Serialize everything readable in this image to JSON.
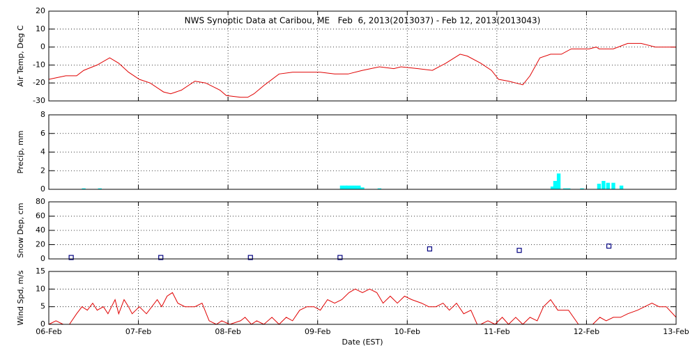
{
  "chart_data": [
    {
      "type": "line",
      "title": "NWS Synoptic Data at Caribou, ME   Feb  6, 2013(2013037) - Feb 12, 2013(2013043)",
      "ylabel": "Air Temp, Deg C",
      "color": "#e00000",
      "ylim": [
        -30,
        20
      ],
      "yticks": [
        -30,
        -20,
        -10,
        0,
        10,
        20
      ],
      "grid": true,
      "x": [
        0,
        0.19,
        0.31,
        0.39,
        0.54,
        0.68,
        0.78,
        0.89,
        1.01,
        1.13,
        1.28,
        1.36,
        1.48,
        1.63,
        1.75,
        1.91,
        1.98,
        2.14,
        2.22,
        2.29,
        2.41,
        2.57,
        2.72,
        3.03,
        3.19,
        3.34,
        3.5,
        3.69,
        3.85,
        3.93,
        4.12,
        4.28,
        4.43,
        4.59,
        4.67,
        4.82,
        4.94,
        5.02,
        5.13,
        5.21,
        5.29,
        5.37,
        5.48,
        5.6,
        5.72,
        5.83,
        6.03,
        6.11,
        6.14,
        6.3,
        6.46,
        6.61,
        6.77,
        6.92,
        7
      ],
      "values": [
        -18,
        -16,
        -16,
        -13,
        -10,
        -6,
        -9,
        -14,
        -18,
        -20,
        -25,
        -26,
        -24,
        -19,
        -20,
        -24,
        -27,
        -28,
        -28,
        -26,
        -21,
        -15,
        -14,
        -14,
        -15,
        -15,
        -13,
        -11,
        -12,
        -11,
        -12,
        -13,
        -9,
        -4,
        -5,
        -9,
        -13,
        -18,
        -19,
        -20,
        -21,
        -16,
        -6,
        -4,
        -4,
        -1,
        -1,
        0,
        -1,
        -1,
        2,
        2,
        0,
        0,
        0
      ]
    },
    {
      "type": "bar",
      "ylabel": "Precip, mm",
      "color": "#00ffff",
      "ylim": [
        0,
        8
      ],
      "yticks": [
        0,
        2,
        4,
        6,
        8
      ],
      "grid": true,
      "x": [
        0.39,
        0.57,
        3.27,
        3.31,
        3.34,
        3.38,
        3.42,
        3.46,
        3.5,
        3.69,
        5.62,
        5.65,
        5.69,
        5.76,
        5.8,
        5.95,
        6.14,
        6.19,
        6.24,
        6.3,
        6.39
      ],
      "values": [
        0.1,
        0.1,
        0.4,
        0.4,
        0.4,
        0.4,
        0.4,
        0.4,
        0.2,
        0.1,
        0.3,
        0.9,
        1.7,
        0.1,
        0.1,
        0.1,
        0.6,
        0.9,
        0.7,
        0.7,
        0.4
      ]
    },
    {
      "type": "scatter",
      "ylabel": "Snow Dep, cm",
      "color": "#000080",
      "ylim": [
        0,
        80
      ],
      "yticks": [
        0,
        20,
        40,
        60,
        80
      ],
      "grid": true,
      "x": [
        0.25,
        1.25,
        2.25,
        3.25,
        4.25,
        5.25,
        6.25
      ],
      "values": [
        2,
        2,
        2,
        2,
        14,
        12,
        18
      ]
    },
    {
      "type": "line",
      "ylabel": "Wind Spd, m/s",
      "xlabel": "Date (EST)",
      "color": "#e00000",
      "ylim": [
        0,
        15
      ],
      "yticks": [
        0,
        5,
        10,
        15
      ],
      "grid": true,
      "xlim": [
        0,
        7
      ],
      "xticks": [
        {
          "value": 0,
          "label": "06-Feb"
        },
        {
          "value": 1,
          "label": "07-Feb"
        },
        {
          "value": 2,
          "label": "08-Feb"
        },
        {
          "value": 3,
          "label": "09-Feb"
        },
        {
          "value": 4,
          "label": "10-Feb"
        },
        {
          "value": 5,
          "label": "11-Feb"
        },
        {
          "value": 6,
          "label": "12-Feb"
        },
        {
          "value": 7,
          "label": "13-Feb"
        }
      ],
      "x": [
        0,
        0.08,
        0.16,
        0.23,
        0.31,
        0.37,
        0.43,
        0.49,
        0.54,
        0.61,
        0.66,
        0.74,
        0.78,
        0.84,
        0.89,
        0.93,
        1.01,
        1.09,
        1.21,
        1.26,
        1.32,
        1.38,
        1.44,
        1.52,
        1.63,
        1.71,
        1.79,
        1.87,
        1.93,
        2.02,
        2.14,
        2.19,
        2.26,
        2.32,
        2.4,
        2.49,
        2.57,
        2.65,
        2.72,
        2.8,
        2.88,
        2.96,
        3.03,
        3.11,
        3.19,
        3.27,
        3.35,
        3.42,
        3.5,
        3.58,
        3.66,
        3.73,
        3.81,
        3.89,
        3.97,
        4.05,
        4.16,
        4.24,
        4.32,
        4.4,
        4.47,
        4.55,
        4.63,
        4.71,
        4.78,
        4.82,
        4.9,
        4.98,
        5.06,
        5.13,
        5.21,
        5.29,
        5.37,
        5.45,
        5.52,
        5.6,
        5.68,
        5.8,
        5.91,
        5.99,
        6.07,
        6.15,
        6.22,
        6.3,
        6.38,
        6.46,
        6.57,
        6.73,
        6.81,
        6.89,
        7
      ],
      "values": [
        0,
        1,
        0,
        0,
        3,
        5,
        4,
        6,
        4,
        5,
        3,
        7,
        3,
        7,
        5,
        3,
        5,
        3,
        7,
        5,
        8,
        9,
        6,
        5,
        5,
        6,
        1,
        0,
        1,
        0,
        1,
        2,
        0,
        1,
        0,
        2,
        0,
        2,
        1,
        4,
        5,
        5,
        4,
        7,
        6,
        7,
        9,
        10,
        9,
        10,
        9,
        6,
        8,
        6,
        8,
        7,
        6,
        5,
        5,
        6,
        4,
        6,
        3,
        4,
        0,
        0,
        1,
        0,
        2,
        0,
        2,
        0,
        2,
        1,
        5,
        7,
        4,
        4,
        0,
        0,
        0,
        2,
        1,
        2,
        2,
        3,
        4,
        6,
        5,
        5,
        2
      ]
    }
  ]
}
